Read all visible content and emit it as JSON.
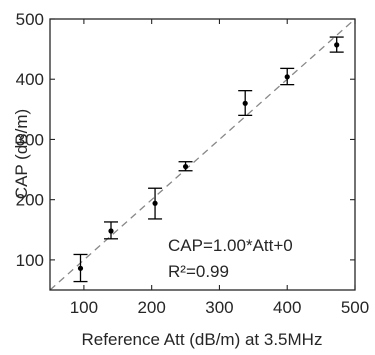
{
  "chart_data": {
    "type": "scatter",
    "title": "",
    "xlabel": "Reference Att (dB/m) at 3.5MHz",
    "ylabel": "CAP (dB/m)",
    "xlim": [
      50,
      500
    ],
    "ylim": [
      50,
      500
    ],
    "xticks": [
      100,
      200,
      300,
      400,
      500
    ],
    "yticks": [
      100,
      200,
      300,
      400,
      500
    ],
    "grid": false,
    "series": [
      {
        "marker": "dot",
        "color": "#000000",
        "points": [
          {
            "x": 95,
            "y": 86,
            "err_low": 64,
            "err_high": 109
          },
          {
            "x": 140,
            "y": 148,
            "err_low": 135,
            "err_high": 163
          },
          {
            "x": 205,
            "y": 194,
            "err_low": 168,
            "err_high": 219
          },
          {
            "x": 250,
            "y": 255,
            "err_low": 248,
            "err_high": 263
          },
          {
            "x": 338,
            "y": 360,
            "err_low": 340,
            "err_high": 381
          },
          {
            "x": 400,
            "y": 404,
            "err_low": 391,
            "err_high": 418
          },
          {
            "x": 473,
            "y": 457,
            "err_low": 445,
            "err_high": 470
          }
        ]
      }
    ],
    "reference_line": {
      "slope": 1.0,
      "intercept": 0,
      "style": "dashed",
      "color": "#888888"
    },
    "annotations": [
      "CAP=1.00*Att+0",
      "R²=0.99"
    ]
  }
}
